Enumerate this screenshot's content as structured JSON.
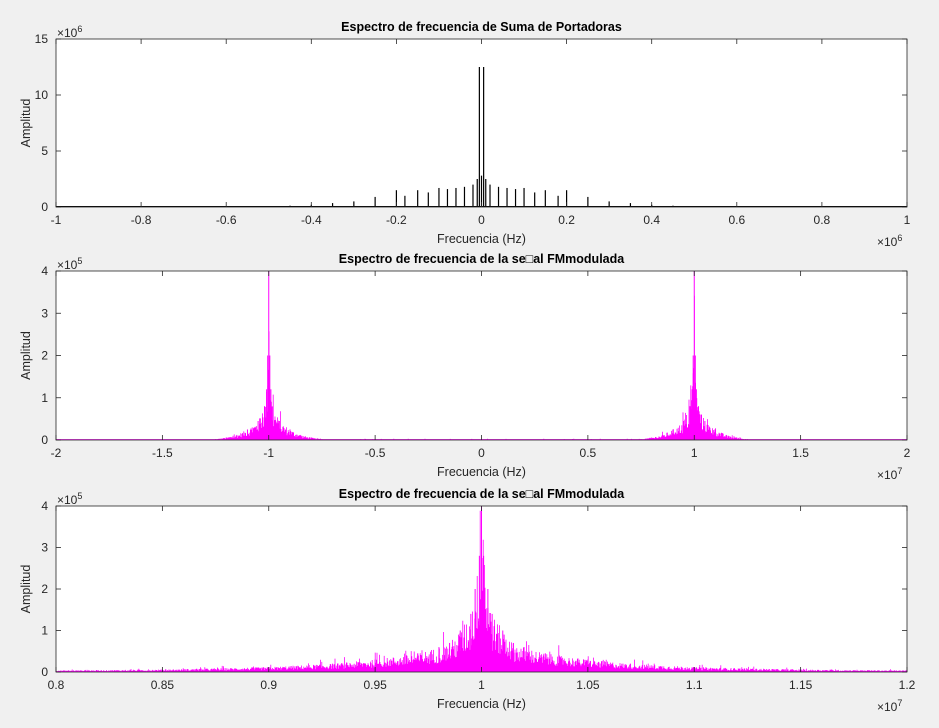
{
  "chart_data": [
    {
      "type": "line",
      "title": "Espectro de frecuencia de Suma de Portadoras",
      "xlabel": "Frecuencia (Hz)",
      "ylabel": "Amplitud",
      "xlim": [
        -1000000,
        1000000
      ],
      "ylim": [
        0,
        15000000
      ],
      "x_exponent_label": "×10",
      "x_exponent": "6",
      "y_exponent_label": "×10",
      "y_exponent": "6",
      "xticks": [
        -1000000,
        -800000,
        -600000,
        -400000,
        -200000,
        0,
        200000,
        400000,
        600000,
        800000,
        1000000
      ],
      "xtick_labels": [
        "-1",
        "-0.8",
        "-0.6",
        "-0.4",
        "-0.2",
        "0",
        "0.2",
        "0.4",
        "0.6",
        "0.8",
        "1"
      ],
      "yticks": [
        0,
        5000000,
        10000000,
        15000000
      ],
      "ytick_labels": [
        "0",
        "5",
        "10",
        "15"
      ],
      "line_color": "#000000",
      "series": [
        {
          "x": [
            -500000,
            -450000,
            -400000,
            -350000,
            -300000,
            -250000,
            -200000,
            -180000,
            -150000,
            -125000,
            -100000,
            -80000,
            -60000,
            -40000,
            -20000,
            -10000,
            -5000,
            0,
            5000,
            10000,
            20000,
            40000,
            60000,
            80000,
            100000,
            125000,
            150000,
            180000,
            200000,
            250000,
            300000,
            350000,
            400000,
            450000,
            500000
          ],
          "y": [
            80000,
            120000,
            200000,
            350000,
            500000,
            900000,
            1500000,
            1000000,
            1500000,
            1300000,
            1700000,
            1600000,
            1700000,
            1800000,
            2000000,
            2500000,
            12500000,
            2800000,
            12500000,
            2500000,
            2000000,
            1800000,
            1700000,
            1600000,
            1700000,
            1300000,
            1500000,
            1000000,
            1500000,
            900000,
            500000,
            350000,
            200000,
            120000,
            80000
          ]
        }
      ]
    },
    {
      "type": "line",
      "title": "Espectro de frecuencia de la se□al FMmodulada",
      "xlabel": "Frecuencia (Hz)",
      "ylabel": "Amplitud",
      "xlim": [
        -20000000,
        20000000
      ],
      "ylim": [
        0,
        400000
      ],
      "x_exponent_label": "×10",
      "x_exponent": "7",
      "y_exponent_label": "×10",
      "y_exponent": "5",
      "xticks": [
        -20000000,
        -15000000,
        -10000000,
        -5000000,
        0,
        5000000,
        10000000,
        15000000,
        20000000
      ],
      "xtick_labels": [
        "-2",
        "-1.5",
        "-1",
        "-0.5",
        "0",
        "0.5",
        "1",
        "1.5",
        "2"
      ],
      "yticks": [
        0,
        100000,
        200000,
        300000,
        400000
      ],
      "ytick_labels": [
        "0",
        "1",
        "2",
        "3",
        "4"
      ],
      "line_color": "#ff00ff",
      "series": [
        {
          "x": [
            -12500000,
            -12000000,
            -11500000,
            -11000000,
            -10500000,
            -10200000,
            -10100000,
            -10050000,
            -10000000,
            -9950000,
            -9900000,
            -9800000,
            -9500000,
            -9000000,
            -8500000,
            -8000000,
            -7500000,
            7500000,
            8000000,
            8500000,
            9000000,
            9500000,
            9800000,
            9900000,
            9950000,
            10000000,
            10050000,
            10100000,
            10200000,
            10500000,
            11000000,
            11500000,
            12000000,
            12500000
          ],
          "y": [
            2000,
            6000,
            12000,
            25000,
            45000,
            80000,
            120000,
            200000,
            400000,
            200000,
            120000,
            80000,
            45000,
            25000,
            12000,
            6000,
            2000,
            2000,
            6000,
            12000,
            25000,
            45000,
            80000,
            120000,
            200000,
            400000,
            200000,
            120000,
            80000,
            45000,
            25000,
            12000,
            6000,
            2000
          ]
        }
      ]
    },
    {
      "type": "line",
      "title": "Espectro de frecuencia de la se□al FMmodulada",
      "xlabel": "Frecuencia (Hz)",
      "ylabel": "Amplitud",
      "xlim": [
        8000000,
        12000000
      ],
      "ylim": [
        0,
        400000
      ],
      "x_exponent_label": "×10",
      "x_exponent": "7",
      "y_exponent_label": "×10",
      "y_exponent": "5",
      "xticks": [
        8000000,
        8500000,
        9000000,
        9500000,
        10000000,
        10500000,
        11000000,
        11500000,
        12000000
      ],
      "xtick_labels": [
        "0.8",
        "0.85",
        "0.9",
        "0.95",
        "1",
        "1.05",
        "1.1",
        "1.15",
        "1.2"
      ],
      "yticks": [
        0,
        100000,
        200000,
        300000,
        400000
      ],
      "ytick_labels": [
        "0",
        "1",
        "2",
        "3",
        "4"
      ],
      "line_color": "#ff00ff",
      "series": [
        {
          "x": [
            8000000,
            8500000,
            9000000,
            9300000,
            9500000,
            9700000,
            9800000,
            9850000,
            9900000,
            9950000,
            9970000,
            9990000,
            10000000,
            10010000,
            10030000,
            10050000,
            10100000,
            10150000,
            10200000,
            10300000,
            10500000,
            10700000,
            11000000,
            11500000,
            12000000
          ],
          "y": [
            4000,
            6000,
            12000,
            20000,
            30000,
            45000,
            60000,
            70000,
            100000,
            140000,
            200000,
            280000,
            400000,
            280000,
            200000,
            140000,
            100000,
            70000,
            60000,
            45000,
            30000,
            20000,
            12000,
            6000,
            4000
          ]
        }
      ]
    }
  ]
}
